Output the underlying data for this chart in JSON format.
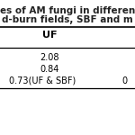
{
  "title_line1": "es of AM fungi in differen",
  "title_line2": "d-burn fields, SBF and m",
  "col_header": "UF",
  "row1": "2.08",
  "row2": "0.84",
  "row3": "0.73(UF & SBF)",
  "row3_right": "0",
  "bg_color": "#ffffff",
  "title_color": "#222222",
  "header_color": "#000000",
  "cell_color": "#000000",
  "title_fontsize": 7.5,
  "header_fontsize": 8.0,
  "cell_fontsize": 7.0
}
